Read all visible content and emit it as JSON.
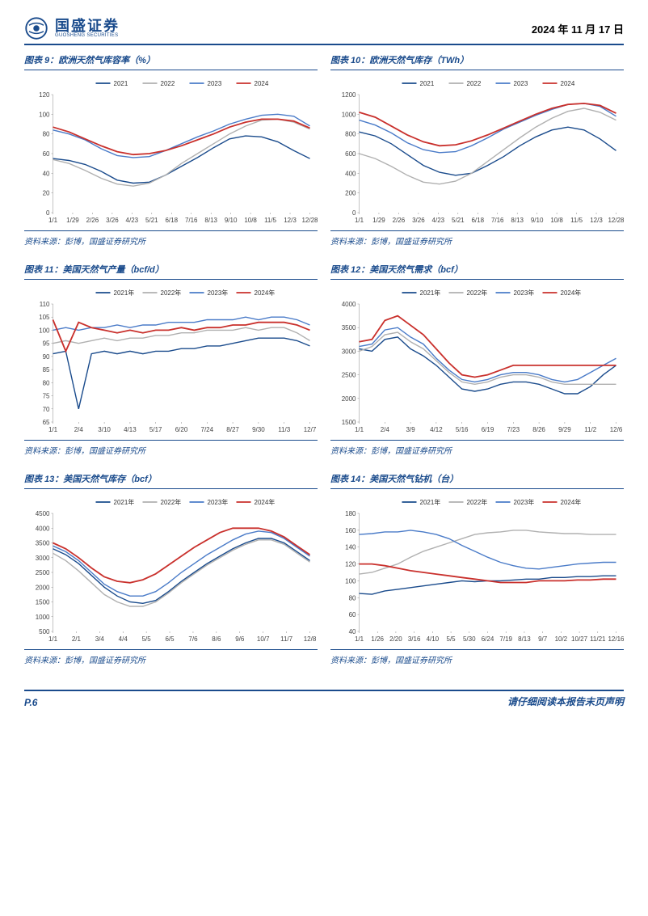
{
  "header": {
    "company_cn": "国盛证券",
    "company_en": "GUOSHENG SECURITIES",
    "date": "2024 年 11 月 17 日",
    "logo_color": "#1a4b8c"
  },
  "footer": {
    "page_label": "P.6",
    "disclaimer": "请仔细阅读本报告末页声明"
  },
  "source_text": "资料来源：彭博，国盛证券研究所",
  "colors": {
    "s2021": "#1a4b8c",
    "s2022": "#b0b0b0",
    "s2023": "#4a7bc8",
    "s2024": "#c9302c",
    "accent": "#1a4b8c",
    "grid": "#dddddd",
    "axis": "#888888"
  },
  "legend_years": [
    "2021",
    "2022",
    "2023",
    "2024"
  ],
  "legend_years_cn": [
    "2021年",
    "2022年",
    "2023年",
    "2024年"
  ],
  "charts": {
    "c9": {
      "title_prefix": "图表 9：",
      "title_text": "欧洲天然气库容率（%）",
      "ymin": 0,
      "ymax": 120,
      "ystep": 20,
      "xticks": [
        "1/1",
        "1/29",
        "2/26",
        "3/26",
        "4/23",
        "5/21",
        "6/18",
        "7/16",
        "8/13",
        "9/10",
        "10/8",
        "11/5",
        "12/3",
        "12/28"
      ],
      "series": {
        "2021": [
          55,
          53,
          49,
          42,
          33,
          30,
          31,
          38,
          47,
          56,
          66,
          75,
          78,
          77,
          72,
          63,
          55
        ],
        "2022": [
          54,
          50,
          43,
          35,
          29,
          27,
          30,
          38,
          50,
          60,
          70,
          80,
          88,
          94,
          95,
          92,
          85
        ],
        "2023": [
          84,
          80,
          74,
          65,
          58,
          56,
          57,
          63,
          70,
          77,
          83,
          90,
          95,
          99,
          100,
          98,
          88
        ],
        "2024": [
          87,
          82,
          75,
          68,
          62,
          59,
          60,
          63,
          68,
          74,
          80,
          87,
          92,
          95,
          95,
          93,
          86
        ]
      }
    },
    "c10": {
      "title_prefix": "图表 10：",
      "title_text": "欧洲天然气库存（TWh）",
      "ymin": 0,
      "ymax": 1200,
      "ystep": 200,
      "xticks": [
        "1/1",
        "1/29",
        "2/26",
        "3/26",
        "4/23",
        "5/21",
        "6/18",
        "7/16",
        "8/13",
        "9/10",
        "10/8",
        "11/5",
        "12/3",
        "12/28"
      ],
      "series": {
        "2021": [
          820,
          780,
          700,
          590,
          480,
          410,
          380,
          400,
          480,
          570,
          680,
          770,
          840,
          870,
          840,
          750,
          630
        ],
        "2022": [
          600,
          550,
          470,
          380,
          310,
          290,
          320,
          400,
          520,
          640,
          760,
          870,
          960,
          1030,
          1060,
          1020,
          940
        ],
        "2023": [
          940,
          890,
          810,
          710,
          640,
          610,
          620,
          680,
          760,
          850,
          920,
          990,
          1050,
          1100,
          1110,
          1080,
          980
        ],
        "2024": [
          1020,
          970,
          880,
          790,
          720,
          680,
          690,
          730,
          790,
          860,
          930,
          1000,
          1060,
          1100,
          1110,
          1090,
          1010
        ]
      }
    },
    "c11": {
      "title_prefix": "图表 11：",
      "title_text": "美国天然气产量（bcf/d）",
      "ymin": 65,
      "ymax": 110,
      "ystep": 5,
      "xticks": [
        "1/1",
        "2/4",
        "3/10",
        "4/13",
        "5/17",
        "6/20",
        "7/24",
        "8/27",
        "9/30",
        "11/3",
        "12/7"
      ],
      "series": {
        "2021": [
          91,
          92,
          70,
          91,
          92,
          91,
          92,
          91,
          92,
          92,
          93,
          93,
          94,
          94,
          95,
          96,
          97,
          97,
          97,
          96,
          94
        ],
        "2022": [
          95,
          96,
          95,
          96,
          97,
          96,
          97,
          97,
          98,
          98,
          99,
          99,
          100,
          100,
          100,
          101,
          100,
          101,
          101,
          99,
          96
        ],
        "2023": [
          100,
          101,
          100,
          101,
          101,
          102,
          101,
          102,
          102,
          103,
          103,
          103,
          104,
          104,
          104,
          105,
          104,
          105,
          105,
          104,
          102
        ],
        "2024": [
          104,
          92,
          103,
          101,
          100,
          99,
          100,
          99,
          100,
          100,
          101,
          100,
          101,
          101,
          102,
          102,
          103,
          103,
          103,
          102,
          100
        ]
      }
    },
    "c12": {
      "title_prefix": "图表 12：",
      "title_text": "美国天然气需求（bcf）",
      "ymin": 1500,
      "ymax": 4000,
      "ystep": 500,
      "xticks": [
        "1/1",
        "2/4",
        "3/9",
        "4/12",
        "5/16",
        "6/19",
        "7/23",
        "8/26",
        "9/29",
        "11/2",
        "12/6"
      ],
      "series": {
        "2021": [
          3050,
          3000,
          3250,
          3300,
          3050,
          2900,
          2700,
          2450,
          2200,
          2150,
          2200,
          2300,
          2350,
          2350,
          2300,
          2200,
          2100,
          2100,
          2250,
          2500,
          2700
        ],
        "2022": [
          3000,
          3100,
          3350,
          3400,
          3200,
          3050,
          2800,
          2550,
          2350,
          2300,
          2350,
          2450,
          2500,
          2500,
          2450,
          2350,
          2300,
          2300,
          2300,
          2300,
          2300
        ],
        "2023": [
          3100,
          3150,
          3450,
          3500,
          3300,
          3150,
          2850,
          2600,
          2400,
          2350,
          2400,
          2500,
          2550,
          2550,
          2500,
          2400,
          2350,
          2400,
          2550,
          2700,
          2850
        ],
        "2024": [
          3200,
          3250,
          3650,
          3750,
          3550,
          3350,
          3050,
          2750,
          2500,
          2450,
          2500,
          2600,
          2700,
          2700,
          2700,
          2700,
          2700,
          2700,
          2700,
          2700,
          2700
        ]
      }
    },
    "c13": {
      "title_prefix": "图表 13：",
      "title_text": "美国天然气库存（bcf）",
      "ymin": 500,
      "ymax": 4500,
      "ystep": 500,
      "xticks": [
        "1/1",
        "2/1",
        "3/4",
        "4/4",
        "5/5",
        "6/5",
        "7/6",
        "8/6",
        "9/6",
        "10/7",
        "11/7",
        "12/8"
      ],
      "series": {
        "2021": [
          3300,
          3100,
          2800,
          2400,
          2000,
          1700,
          1500,
          1450,
          1550,
          1850,
          2200,
          2500,
          2800,
          3050,
          3300,
          3500,
          3650,
          3650,
          3500,
          3200,
          2900
        ],
        "2022": [
          3150,
          2900,
          2550,
          2150,
          1750,
          1500,
          1350,
          1350,
          1500,
          1800,
          2150,
          2450,
          2750,
          3000,
          3250,
          3450,
          3600,
          3600,
          3450,
          3150,
          2850
        ],
        "2023": [
          3400,
          3200,
          2900,
          2500,
          2100,
          1850,
          1700,
          1700,
          1850,
          2150,
          2500,
          2800,
          3100,
          3350,
          3600,
          3800,
          3900,
          3850,
          3650,
          3350,
          3050
        ],
        "2024": [
          3500,
          3300,
          3000,
          2650,
          2350,
          2200,
          2150,
          2250,
          2450,
          2750,
          3050,
          3350,
          3600,
          3850,
          4000,
          4000,
          4000,
          3900,
          3700,
          3400,
          3100
        ]
      }
    },
    "c14": {
      "title_prefix": "图表 14：",
      "title_text": "美国天然气钻机（台）",
      "ymin": 40,
      "ymax": 180,
      "ystep": 20,
      "xticks": [
        "1/1",
        "1/26",
        "2/20",
        "3/16",
        "4/10",
        "5/5",
        "5/30",
        "6/24",
        "7/19",
        "8/13",
        "9/7",
        "10/2",
        "10/27",
        "11/21",
        "12/16"
      ],
      "series": {
        "2021": [
          85,
          84,
          88,
          90,
          92,
          94,
          96,
          98,
          100,
          99,
          100,
          100,
          101,
          102,
          102,
          104,
          104,
          105,
          105,
          106,
          106
        ],
        "2022": [
          108,
          110,
          115,
          120,
          128,
          135,
          140,
          145,
          150,
          155,
          157,
          158,
          160,
          160,
          158,
          157,
          156,
          156,
          155,
          155,
          155
        ],
        "2023": [
          155,
          156,
          158,
          158,
          160,
          158,
          155,
          150,
          142,
          135,
          128,
          122,
          118,
          115,
          114,
          116,
          118,
          120,
          121,
          122,
          122
        ],
        "2024": [
          120,
          120,
          118,
          115,
          112,
          110,
          108,
          106,
          104,
          102,
          100,
          98,
          98,
          98,
          100,
          100,
          100,
          101,
          101,
          102,
          102
        ]
      }
    }
  }
}
